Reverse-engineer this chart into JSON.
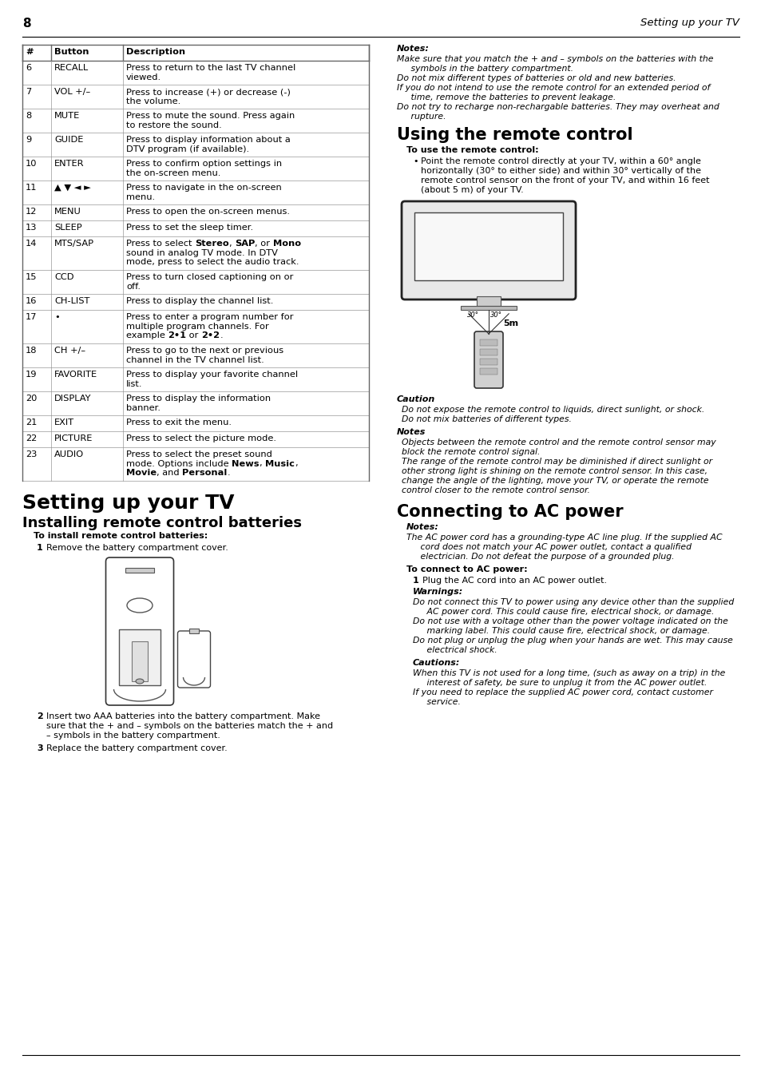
{
  "page_number": "8",
  "header_right": "Setting up your TV",
  "table_headers": [
    "#",
    "Button",
    "Description"
  ],
  "table_rows": [
    {
      "num": "6",
      "btn": "RECALL",
      "desc": [
        "Press to return to the last TV channel",
        "viewed."
      ],
      "bold_parts": []
    },
    {
      "num": "7",
      "btn": "VOL +/–",
      "desc": [
        "Press to increase (+) or decrease (-)",
        "the volume."
      ],
      "bold_parts": []
    },
    {
      "num": "8",
      "btn": "MUTE",
      "desc": [
        "Press to mute the sound. Press again",
        "to restore the sound."
      ],
      "bold_parts": []
    },
    {
      "num": "9",
      "btn": "GUIDE",
      "desc": [
        "Press to display information about a",
        "DTV program (if available)."
      ],
      "bold_parts": []
    },
    {
      "num": "10",
      "btn": "ENTER",
      "desc": [
        "Press to confirm option settings in",
        "the on-screen menu."
      ],
      "bold_parts": []
    },
    {
      "num": "11",
      "btn": "▲ ▼ ◄ ►",
      "desc": [
        "Press to navigate in the on-screen",
        "menu."
      ],
      "bold_parts": []
    },
    {
      "num": "12",
      "btn": "MENU",
      "desc": [
        "Press to open the on-screen menus."
      ],
      "bold_parts": []
    },
    {
      "num": "13",
      "btn": "SLEEP",
      "desc": [
        "Press to set the sleep timer."
      ],
      "bold_parts": []
    },
    {
      "num": "14",
      "btn": "MTS/SAP",
      "desc": [
        "Press to select __Stereo__, __SAP__, or __Mono__",
        "sound in analog TV mode. In DTV",
        "mode, press to select the audio track."
      ],
      "bold_parts": [
        "Stereo",
        "SAP",
        "Mono"
      ]
    },
    {
      "num": "15",
      "btn": "CCD",
      "desc": [
        "Press to turn closed captioning on or",
        "off."
      ],
      "bold_parts": []
    },
    {
      "num": "16",
      "btn": "CH-LIST",
      "desc": [
        "Press to display the channel list."
      ],
      "bold_parts": []
    },
    {
      "num": "17",
      "btn": "•",
      "desc": [
        "Press to enter a program number for",
        "multiple program channels. For",
        "example __2•1__ or __2•2__."
      ],
      "bold_parts": [
        "2•1",
        "2•2"
      ]
    },
    {
      "num": "18",
      "btn": "CH +/–",
      "desc": [
        "Press to go to the next or previous",
        "channel in the TV channel list."
      ],
      "bold_parts": []
    },
    {
      "num": "19",
      "btn": "FAVORITE",
      "desc": [
        "Press to display your favorite channel",
        "list."
      ],
      "bold_parts": []
    },
    {
      "num": "20",
      "btn": "DISPLAY",
      "desc": [
        "Press to display the information",
        "banner."
      ],
      "bold_parts": []
    },
    {
      "num": "21",
      "btn": "EXIT",
      "desc": [
        "Press to exit the menu."
      ],
      "bold_parts": []
    },
    {
      "num": "22",
      "btn": "PICTURE",
      "desc": [
        "Press to select the picture mode."
      ],
      "bold_parts": []
    },
    {
      "num": "23",
      "btn": "AUDIO",
      "desc": [
        "Press to select the preset sound",
        "mode. Options include __News__, __Music__,",
        "__Movie__, and __Personal__."
      ],
      "bold_parts": [
        "News",
        "Music",
        "Movie",
        "Personal"
      ]
    }
  ],
  "section1_title": "Setting up your TV",
  "section1_sub": "Installing remote control batteries",
  "section1_head": "To install remote control batteries:",
  "section2_title": "Using the remote control",
  "section2_head": "To use the remote control:",
  "section2_bullet": "Point the remote control directly at your TV, within a 60° angle\nhorizontally (30° to either side) and within 30° vertically of the\nremote control sensor on the front of your TV, and within 16 feet\n(about 5 m) of your TV.",
  "right_notes_title": "Notes:",
  "right_notes_lines": [
    "Make sure that you match the + and – symbols on the batteries with the",
    "     symbols in the battery compartment.",
    "Do not mix different types of batteries or old and new batteries.",
    "If you do not intend to use the remote control for an extended period of",
    "     time, remove the batteries to prevent leakage.",
    "Do not try to recharge non-rechargable batteries. They may overheat and",
    "     rupture."
  ],
  "caution_title": "Caution",
  "caution_lines": [
    "Do not expose the remote control to liquids, direct sunlight, or shock.",
    "Do not mix batteries of different types."
  ],
  "notes2_title": "Notes",
  "notes2_lines": [
    "Objects between the remote control and the remote control sensor may",
    "block the remote control signal.",
    "The range of the remote control may be diminished if direct sunlight or",
    "other strong light is shining on the remote control sensor. In this case,",
    "change the angle of the lighting, move your TV, or operate the remote",
    "control closer to the remote control sensor."
  ],
  "section3_title": "Connecting to AC power",
  "section3_notes_title": "Notes:",
  "section3_notes_lines": [
    "The AC power cord has a grounding-type AC line plug. If the supplied AC",
    "     cord does not match your AC power outlet, contact a qualified",
    "     electrician. Do not defeat the purpose of a grounded plug."
  ],
  "section3_head": "To connect to AC power:",
  "section3_step1": "Plug the AC cord into an AC power outlet.",
  "warnings_title": "Warnings:",
  "warnings_lines": [
    "Do not connect this TV to power using any device other than the supplied",
    "     AC power cord. This could cause fire, electrical shock, or damage.",
    "Do not use with a voltage other than the power voltage indicated on the",
    "     marking label. This could cause fire, electrical shock, or damage.",
    "Do not plug or unplug the plug when your hands are wet. This may cause",
    "     electrical shock."
  ],
  "cautions2_title": "Cautions:",
  "cautions2_lines": [
    "When this TV is not used for a long time, (such as away on a trip) in the",
    "     interest of safety, be sure to unplug it from the AC power outlet.",
    "If you need to replace the supplied AC power cord, contact customer",
    "     service."
  ]
}
